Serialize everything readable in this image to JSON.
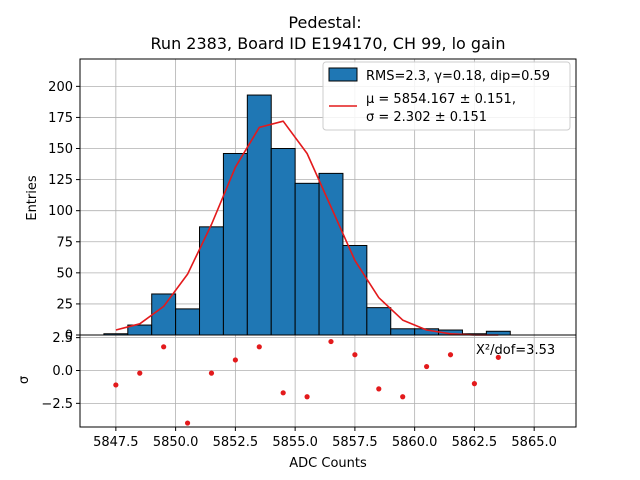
{
  "chart_data": [
    {
      "type": "bar",
      "title_lines": [
        "Pedestal:",
        "Run 2383, Board ID E194170, CH 99, lo gain"
      ],
      "xlabel": "",
      "ylabel": "Entries",
      "xlim": [
        5846.0,
        5866.75
      ],
      "ylim": [
        0,
        222
      ],
      "grid": true,
      "yticks": [
        0,
        25,
        50,
        75,
        100,
        125,
        150,
        175,
        200
      ],
      "ytick_labels": [
        "0",
        "25",
        "50",
        "75",
        "100",
        "125",
        "150",
        "175",
        "200"
      ],
      "bin_edges": [
        5847.0,
        5848.0,
        5849.0,
        5850.0,
        5851.0,
        5852.0,
        5853.0,
        5854.0,
        5855.0,
        5856.0,
        5857.0,
        5858.0,
        5859.0,
        5860.0,
        5861.0,
        5862.0,
        5863.0,
        5864.0
      ],
      "values": [
        1,
        8,
        33,
        21,
        87,
        146,
        193,
        150,
        122,
        130,
        72,
        22,
        5,
        5,
        4,
        1,
        3
      ],
      "fit_x": [
        5847.5,
        5848.5,
        5849.5,
        5850.5,
        5851.5,
        5852.5,
        5853.5,
        5854.5,
        5855.5,
        5856.5,
        5857.5,
        5858.5,
        5859.5,
        5860.5,
        5861.5,
        5862.5,
        5863.5
      ],
      "fit_y": [
        4,
        9,
        23,
        49,
        89,
        135,
        167,
        172,
        146,
        103,
        60,
        30,
        12,
        4,
        1,
        0,
        0
      ],
      "legend_position": "top-right",
      "legend": [
        {
          "kind": "patch",
          "label": "RMS=2.3, γ=0.18, dip=0.59",
          "color": "#1f77b4"
        },
        {
          "kind": "line",
          "label_lines": [
            "μ = 5854.167 ± 0.151,",
            "σ = 2.302 ± 0.151"
          ],
          "color": "#e31a1c"
        }
      ]
    },
    {
      "type": "scatter",
      "xlabel": "ADC Counts",
      "ylabel": "σ",
      "xlim": [
        5846.0,
        5866.75
      ],
      "ylim": [
        -4.3,
        2.7
      ],
      "grid": true,
      "xticks": [
        5847.5,
        5850.0,
        5852.5,
        5855.0,
        5857.5,
        5860.0,
        5862.5,
        5865.0
      ],
      "xtick_labels": [
        "5847.5",
        "5850.0",
        "5852.5",
        "5855.0",
        "5857.5",
        "5860.0",
        "5862.5",
        "5865.0"
      ],
      "yticks": [
        2.5,
        0.0,
        -2.5
      ],
      "ytick_labels": [
        "2.5",
        "0.0",
        "−2.5"
      ],
      "x": [
        5847.5,
        5848.5,
        5849.5,
        5850.5,
        5851.5,
        5852.5,
        5853.5,
        5854.5,
        5855.5,
        5856.5,
        5857.5,
        5858.5,
        5859.5,
        5860.5,
        5861.5,
        5862.5,
        5863.5
      ],
      "y": [
        -1.1,
        -0.2,
        1.8,
        -4.0,
        -0.2,
        0.8,
        1.8,
        -1.7,
        -2.0,
        2.2,
        1.2,
        -1.4,
        -2.0,
        0.3,
        1.2,
        -1.0,
        1.0
      ],
      "annotation": "X²/dof=3.53",
      "color": "#e31a1c"
    }
  ]
}
